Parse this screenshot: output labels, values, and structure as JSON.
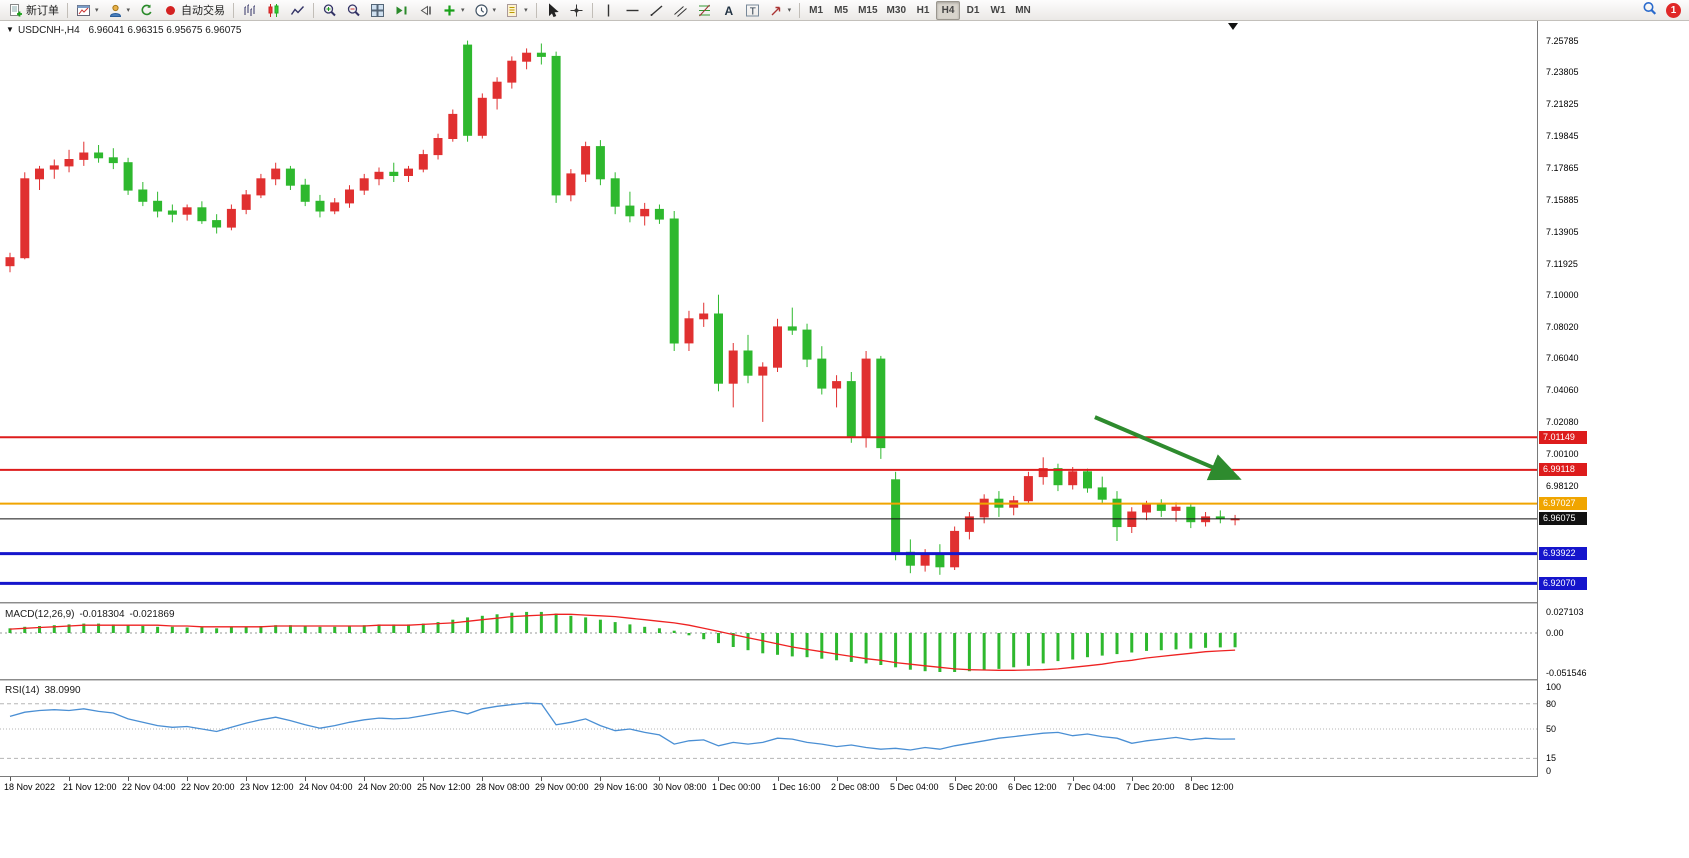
{
  "toolbar": {
    "left_buttons": [
      {
        "name": "new-order",
        "icon": "new-order",
        "label": "新订单"
      },
      {
        "name": "sep"
      },
      {
        "name": "new-chart",
        "icon": "new-chart",
        "caret": true
      },
      {
        "name": "profiles",
        "icon": "profiles",
        "caret": true
      },
      {
        "name": "refresh",
        "icon": "refresh"
      },
      {
        "name": "autotrading",
        "icon": "autotrading",
        "label": "自动交易"
      },
      {
        "name": "sep"
      },
      {
        "name": "bar-chart",
        "icon": "bar-chart"
      },
      {
        "name": "candlestick-chart",
        "icon": "candlestick"
      },
      {
        "name": "line-chart",
        "icon": "line-chart"
      },
      {
        "name": "sep"
      },
      {
        "name": "zoom-in",
        "icon": "zoom-in"
      },
      {
        "name": "zoom-out",
        "icon": "zoom-out"
      },
      {
        "name": "tile-windows",
        "icon": "tile"
      },
      {
        "name": "auto-scroll",
        "icon": "autoscroll"
      },
      {
        "name": "chart-shift",
        "icon": "shift"
      },
      {
        "name": "indicators",
        "icon": "indicators",
        "caret": true
      },
      {
        "name": "periods",
        "icon": "clock",
        "caret": true
      },
      {
        "name": "templates",
        "icon": "template",
        "caret": true
      },
      {
        "name": "sep"
      },
      {
        "name": "cursor",
        "icon": "cursor"
      },
      {
        "name": "crosshair",
        "icon": "crosshair"
      },
      {
        "name": "sep"
      },
      {
        "name": "vertical-line",
        "icon": "vline"
      },
      {
        "name": "horizontal-line",
        "icon": "hline"
      },
      {
        "name": "trendline",
        "icon": "trend"
      },
      {
        "name": "equidistant-channel",
        "icon": "channel"
      },
      {
        "name": "fibonacci",
        "icon": "fibo"
      },
      {
        "name": "text",
        "icon": "text-a"
      },
      {
        "name": "text-label",
        "icon": "text-t"
      },
      {
        "name": "arrows",
        "icon": "arrow-tool",
        "caret": true
      },
      {
        "name": "sep"
      }
    ],
    "timeframes": [
      "M1",
      "M5",
      "M15",
      "M30",
      "H1",
      "H4",
      "D1",
      "W1",
      "MN"
    ],
    "active_timeframe": "H4",
    "notification_count": "1"
  },
  "chart_data": [
    {
      "type": "candlestick",
      "title": "USDCNH-,H4",
      "ohlc_text": "6.96041 6.96315 6.95675 6.96075",
      "current_ohlc": {
        "open": "6.96041",
        "high": "6.96315",
        "low": "6.95675",
        "close": "6.96075"
      },
      "up_color": "#e03030",
      "down_color": "#2eb82e",
      "y_ticks": [
        "7.25785",
        "7.23805",
        "7.21825",
        "7.19845",
        "7.17865",
        "7.15885",
        "7.13905",
        "7.11925",
        "7.10000",
        "7.08020",
        "7.06040",
        "7.04060",
        "7.02080",
        "7.00100",
        "6.98120"
      ],
      "hlines": [
        {
          "value": "7.01149",
          "color": "#dd1c1c",
          "width": 2
        },
        {
          "value": "6.99118",
          "color": "#dd1c1c",
          "width": 2
        },
        {
          "value": "6.97027",
          "color": "#f0a500",
          "width": 2
        },
        {
          "value": "6.96075",
          "color": "#111111",
          "width": 1,
          "role": "bid-price"
        },
        {
          "value": "6.93922",
          "color": "#1515cc",
          "width": 3
        },
        {
          "value": "6.92070",
          "color": "#1515cc",
          "width": 3
        }
      ],
      "arrow": {
        "color": "#2e8b2e",
        "from_bar": 73.5,
        "from_price": 7.024,
        "to_bar": 83.2,
        "to_price": 6.986
      },
      "x_labels": [
        "18 Nov 2022",
        "21 Nov 12:00",
        "22 Nov 04:00",
        "22 Nov 20:00",
        "23 Nov 12:00",
        "24 Nov 04:00",
        "24 Nov 20:00",
        "25 Nov 12:00",
        "28 Nov 08:00",
        "29 Nov 00:00",
        "29 Nov 16:00",
        "30 Nov 08:00",
        "1 Dec 00:00",
        "1 Dec 16:00",
        "2 Dec 08:00",
        "5 Dec 04:00",
        "5 Dec 20:00",
        "6 Dec 12:00",
        "7 Dec 04:00",
        "7 Dec 20:00",
        "8 Dec 12:00"
      ],
      "bars_per_label": 4,
      "ohlc": [
        [
          7.118,
          7.126,
          7.114,
          7.123
        ],
        [
          7.123,
          7.176,
          7.122,
          7.172
        ],
        [
          7.172,
          7.18,
          7.165,
          7.178
        ],
        [
          7.178,
          7.184,
          7.172,
          7.18
        ],
        [
          7.18,
          7.19,
          7.176,
          7.184
        ],
        [
          7.184,
          7.195,
          7.18,
          7.188
        ],
        [
          7.188,
          7.193,
          7.182,
          7.185
        ],
        [
          7.185,
          7.191,
          7.178,
          7.182
        ],
        [
          7.182,
          7.185,
          7.162,
          7.165
        ],
        [
          7.165,
          7.17,
          7.155,
          7.158
        ],
        [
          7.158,
          7.164,
          7.148,
          7.152
        ],
        [
          7.152,
          7.156,
          7.145,
          7.15
        ],
        [
          7.15,
          7.156,
          7.146,
          7.154
        ],
        [
          7.154,
          7.158,
          7.144,
          7.146
        ],
        [
          7.146,
          7.15,
          7.138,
          7.142
        ],
        [
          7.142,
          7.156,
          7.14,
          7.153
        ],
        [
          7.153,
          7.165,
          7.15,
          7.162
        ],
        [
          7.162,
          7.175,
          7.16,
          7.172
        ],
        [
          7.172,
          7.182,
          7.168,
          7.178
        ],
        [
          7.178,
          7.18,
          7.165,
          7.168
        ],
        [
          7.168,
          7.172,
          7.155,
          7.158
        ],
        [
          7.158,
          7.162,
          7.148,
          7.152
        ],
        [
          7.152,
          7.16,
          7.15,
          7.157
        ],
        [
          7.157,
          7.168,
          7.154,
          7.165
        ],
        [
          7.165,
          7.175,
          7.162,
          7.172
        ],
        [
          7.172,
          7.179,
          7.168,
          7.176
        ],
        [
          7.176,
          7.182,
          7.17,
          7.174
        ],
        [
          7.174,
          7.18,
          7.17,
          7.178
        ],
        [
          7.178,
          7.19,
          7.176,
          7.187
        ],
        [
          7.187,
          7.2,
          7.184,
          7.197
        ],
        [
          7.197,
          7.215,
          7.195,
          7.212
        ],
        [
          7.255,
          7.2578,
          7.195,
          7.199
        ],
        [
          7.199,
          7.225,
          7.197,
          7.222
        ],
        [
          7.222,
          7.235,
          7.215,
          7.232
        ],
        [
          7.232,
          7.248,
          7.228,
          7.245
        ],
        [
          7.245,
          7.253,
          7.24,
          7.25
        ],
        [
          7.25,
          7.256,
          7.243,
          7.248
        ],
        [
          7.248,
          7.251,
          7.157,
          7.162
        ],
        [
          7.162,
          7.178,
          7.158,
          7.175
        ],
        [
          7.175,
          7.195,
          7.17,
          7.192
        ],
        [
          7.192,
          7.196,
          7.168,
          7.172
        ],
        [
          7.172,
          7.176,
          7.15,
          7.155
        ],
        [
          7.155,
          7.164,
          7.145,
          7.149
        ],
        [
          7.149,
          7.157,
          7.143,
          7.153
        ],
        [
          7.153,
          7.156,
          7.144,
          7.147
        ],
        [
          7.147,
          7.152,
          7.065,
          7.07
        ],
        [
          7.07,
          7.09,
          7.065,
          7.085
        ],
        [
          7.085,
          7.095,
          7.08,
          7.088
        ],
        [
          7.088,
          7.1,
          7.04,
          7.045
        ],
        [
          7.045,
          7.07,
          7.03,
          7.065
        ],
        [
          7.065,
          7.075,
          7.045,
          7.05
        ],
        [
          7.05,
          7.058,
          7.021,
          7.055
        ],
        [
          7.055,
          7.085,
          7.052,
          7.08
        ],
        [
          7.08,
          7.092,
          7.075,
          7.078
        ],
        [
          7.078,
          7.082,
          7.055,
          7.06
        ],
        [
          7.06,
          7.068,
          7.038,
          7.042
        ],
        [
          7.042,
          7.05,
          7.03,
          7.046
        ],
        [
          7.046,
          7.052,
          7.008,
          7.012
        ],
        [
          7.012,
          7.065,
          7.005,
          7.06
        ],
        [
          7.06,
          7.062,
          6.998,
          7.005
        ],
        [
          6.985,
          6.99,
          6.935,
          6.94
        ],
        [
          6.94,
          6.948,
          6.927,
          6.932
        ],
        [
          6.932,
          6.942,
          6.928,
          6.939
        ],
        [
          6.939,
          6.945,
          6.926,
          6.931
        ],
        [
          6.931,
          6.956,
          6.929,
          6.953
        ],
        [
          6.953,
          6.965,
          6.948,
          6.962
        ],
        [
          6.962,
          6.976,
          6.958,
          6.973
        ],
        [
          6.973,
          6.978,
          6.962,
          6.968
        ],
        [
          6.968,
          6.975,
          6.963,
          6.972
        ],
        [
          6.972,
          6.99,
          6.97,
          6.987
        ],
        [
          6.987,
          6.999,
          6.982,
          6.992
        ],
        [
          6.992,
          6.995,
          6.978,
          6.982
        ],
        [
          6.982,
          6.993,
          6.979,
          6.99
        ],
        [
          6.99,
          6.992,
          6.977,
          6.98
        ],
        [
          6.98,
          6.987,
          6.97,
          6.973
        ],
        [
          6.973,
          6.978,
          6.947,
          6.956
        ],
        [
          6.956,
          6.968,
          6.952,
          6.965
        ],
        [
          6.965,
          6.972,
          6.96,
          6.97
        ],
        [
          6.97,
          6.973,
          6.962,
          6.966
        ],
        [
          6.966,
          6.971,
          6.959,
          6.968
        ],
        [
          6.968,
          6.97,
          6.955,
          6.959
        ],
        [
          6.959,
          6.965,
          6.956,
          6.962
        ],
        [
          6.962,
          6.966,
          6.958,
          6.961
        ],
        [
          6.9604,
          6.9632,
          6.9568,
          6.9608
        ]
      ]
    },
    {
      "type": "macd",
      "label": "MACD(12,26,9)",
      "value_main": "-0.018304",
      "value_signal": "-0.021869",
      "scale": [
        "0.027103",
        "0.00",
        "-0.051546"
      ],
      "histogram_color": "#2eb82e",
      "signal_color": "#ee2222",
      "histogram": [
        0.006,
        0.008,
        0.009,
        0.01,
        0.011,
        0.012,
        0.012,
        0.011,
        0.01,
        0.009,
        0.008,
        0.008,
        0.007,
        0.007,
        0.006,
        0.007,
        0.008,
        0.009,
        0.01,
        0.01,
        0.009,
        0.008,
        0.008,
        0.009,
        0.01,
        0.011,
        0.011,
        0.011,
        0.012,
        0.014,
        0.017,
        0.02,
        0.022,
        0.024,
        0.026,
        0.027,
        0.027,
        0.025,
        0.022,
        0.02,
        0.017,
        0.014,
        0.011,
        0.008,
        0.006,
        0.003,
        -0.003,
        -0.008,
        -0.013,
        -0.018,
        -0.022,
        -0.026,
        -0.028,
        -0.03,
        -0.031,
        -0.033,
        -0.035,
        -0.037,
        -0.039,
        -0.041,
        -0.044,
        -0.047,
        -0.049,
        -0.05,
        -0.05,
        -0.049,
        -0.048,
        -0.046,
        -0.044,
        -0.042,
        -0.039,
        -0.036,
        -0.034,
        -0.031,
        -0.029,
        -0.027,
        -0.025,
        -0.023,
        -0.022,
        -0.021,
        -0.02,
        -0.019,
        -0.0185,
        -0.0183
      ],
      "signal": [
        0.005,
        0.006,
        0.007,
        0.008,
        0.009,
        0.01,
        0.01,
        0.01,
        0.01,
        0.01,
        0.01,
        0.009,
        0.009,
        0.008,
        0.008,
        0.008,
        0.008,
        0.008,
        0.009,
        0.009,
        0.009,
        0.009,
        0.009,
        0.009,
        0.009,
        0.01,
        0.01,
        0.01,
        0.011,
        0.012,
        0.013,
        0.015,
        0.017,
        0.019,
        0.021,
        0.022,
        0.023,
        0.024,
        0.024,
        0.023,
        0.022,
        0.021,
        0.019,
        0.017,
        0.015,
        0.013,
        0.01,
        0.006,
        0.002,
        -0.002,
        -0.006,
        -0.01,
        -0.014,
        -0.018,
        -0.021,
        -0.024,
        -0.027,
        -0.03,
        -0.033,
        -0.035,
        -0.038,
        -0.04,
        -0.042,
        -0.044,
        -0.046,
        -0.047,
        -0.0475,
        -0.0478,
        -0.0478,
        -0.0475,
        -0.047,
        -0.046,
        -0.044,
        -0.042,
        -0.04,
        -0.037,
        -0.035,
        -0.032,
        -0.03,
        -0.028,
        -0.026,
        -0.024,
        -0.023,
        -0.0219
      ]
    },
    {
      "type": "rsi",
      "label": "RSI(14)",
      "value": "38.0990",
      "levels": [
        100,
        80,
        50,
        15,
        0
      ],
      "line_color": "#4a8fd4",
      "series": [
        65,
        70,
        72,
        73,
        72,
        74,
        71,
        69,
        62,
        58,
        54,
        52,
        53,
        50,
        47,
        52,
        57,
        61,
        64,
        60,
        55,
        51,
        54,
        58,
        61,
        63,
        62,
        63,
        66,
        69,
        72,
        68,
        74,
        77,
        79,
        81,
        80,
        55,
        58,
        62,
        54,
        48,
        50,
        46,
        43,
        32,
        36,
        37,
        30,
        34,
        32,
        34,
        39,
        38,
        34,
        32,
        29,
        31,
        28,
        26,
        27,
        25,
        28,
        26,
        30,
        33,
        36,
        39,
        41,
        43,
        45,
        46,
        42,
        44,
        41,
        39,
        33,
        36,
        38,
        40,
        37,
        39,
        38,
        38.1
      ]
    }
  ]
}
